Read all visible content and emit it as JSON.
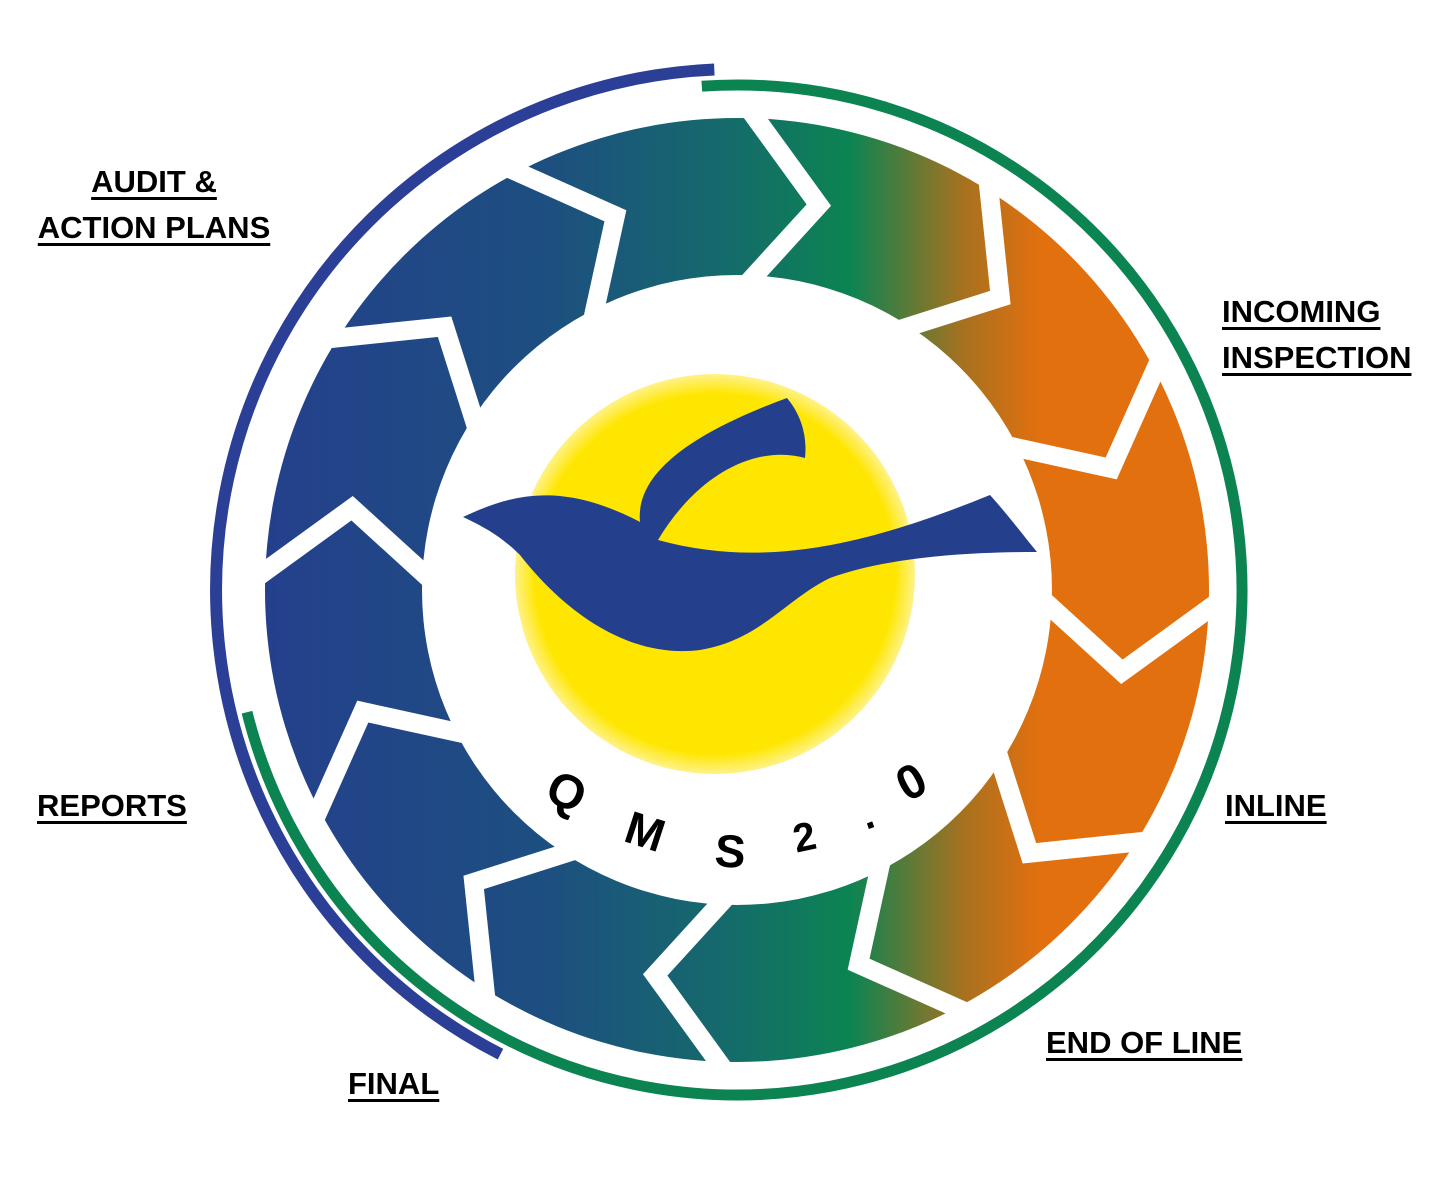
{
  "logo": {
    "letters": [
      "Q",
      "M",
      "S",
      "2",
      ".",
      "0"
    ],
    "colors": {
      "sun": "#ffe600",
      "bird": "#24408c"
    }
  },
  "cycle": {
    "colors": {
      "blue": "#24408c",
      "teal": "#18676e",
      "green": "#0c8452",
      "orange": "#e2700f"
    },
    "outer_arc_colors": {
      "blue": "#2b3f97",
      "green": "#0c8452"
    }
  },
  "labels": {
    "audit": [
      "AUDIT &",
      "ACTION PLANS"
    ],
    "incoming": [
      "INCOMING",
      "INSPECTION"
    ],
    "inline": [
      "INLINE"
    ],
    "end_of_line": [
      "END OF LINE"
    ],
    "final": [
      "FINAL"
    ],
    "reports": [
      "REPORTS"
    ]
  }
}
